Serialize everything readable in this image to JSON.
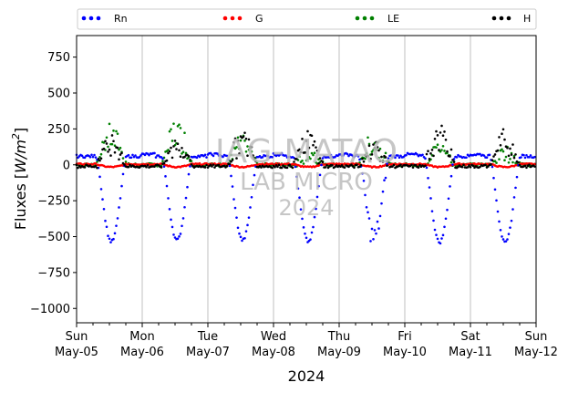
{
  "chart_data": {
    "type": "scatter",
    "title": "",
    "xlabel": "2024",
    "ylabel": "Fluxes [W/m²]",
    "ylabel_parts": {
      "prefix": "Fluxes [",
      "unit_main": "W/m",
      "unit_exp": "2",
      "suffix": "]"
    },
    "xlim": [
      0,
      7
    ],
    "ylim": [
      -1100,
      900
    ],
    "yticks": [
      -1000,
      -750,
      -500,
      -250,
      0,
      250,
      500,
      750
    ],
    "xticks": [
      {
        "x": 0,
        "day": "Sun",
        "date": "May-05"
      },
      {
        "x": 1,
        "day": "Mon",
        "date": "May-06"
      },
      {
        "x": 2,
        "day": "Tue",
        "date": "May-07"
      },
      {
        "x": 3,
        "day": "Wed",
        "date": "May-08"
      },
      {
        "x": 4,
        "day": "Thu",
        "date": "May-09"
      },
      {
        "x": 5,
        "day": "Fri",
        "date": "May-10"
      },
      {
        "x": 6,
        "day": "Sat",
        "date": "May-11"
      },
      {
        "x": 7,
        "day": "Sun",
        "date": "May-12"
      }
    ],
    "grid": "vertical",
    "legend_position": "top",
    "series_colors": {
      "Rn": "#0000ff",
      "G": "#ff0000",
      "LE": "#008000",
      "H": "#000000"
    },
    "series": [
      {
        "name": "Rn",
        "color": "#0000ff",
        "night_value": 60,
        "midday_peak": [
          -535,
          -525,
          -525,
          -535,
          -505,
          -540,
          -545
        ]
      },
      {
        "name": "G",
        "color": "#ff0000",
        "night_value": 5,
        "midday_peak": [
          -15,
          -15,
          -15,
          -15,
          -15,
          -15,
          -15
        ]
      },
      {
        "name": "LE",
        "color": "#008000",
        "night_value": 0,
        "midday_peak": [
          270,
          300,
          180,
          80,
          200,
          160,
          120
        ]
      },
      {
        "name": "H",
        "color": "#000000",
        "night_value": -10,
        "midday_peak": [
          200,
          180,
          235,
          215,
          160,
          255,
          220
        ]
      }
    ]
  },
  "legend": [
    {
      "label": "Rn",
      "color": "#0000ff"
    },
    {
      "label": "G",
      "color": "#ff0000"
    },
    {
      "label": "LE",
      "color": "#008000"
    },
    {
      "label": "H",
      "color": "#000000"
    }
  ],
  "watermark": {
    "line1": "IAG-MATAO",
    "line2": "LAB MICRO",
    "line3": "2024"
  }
}
